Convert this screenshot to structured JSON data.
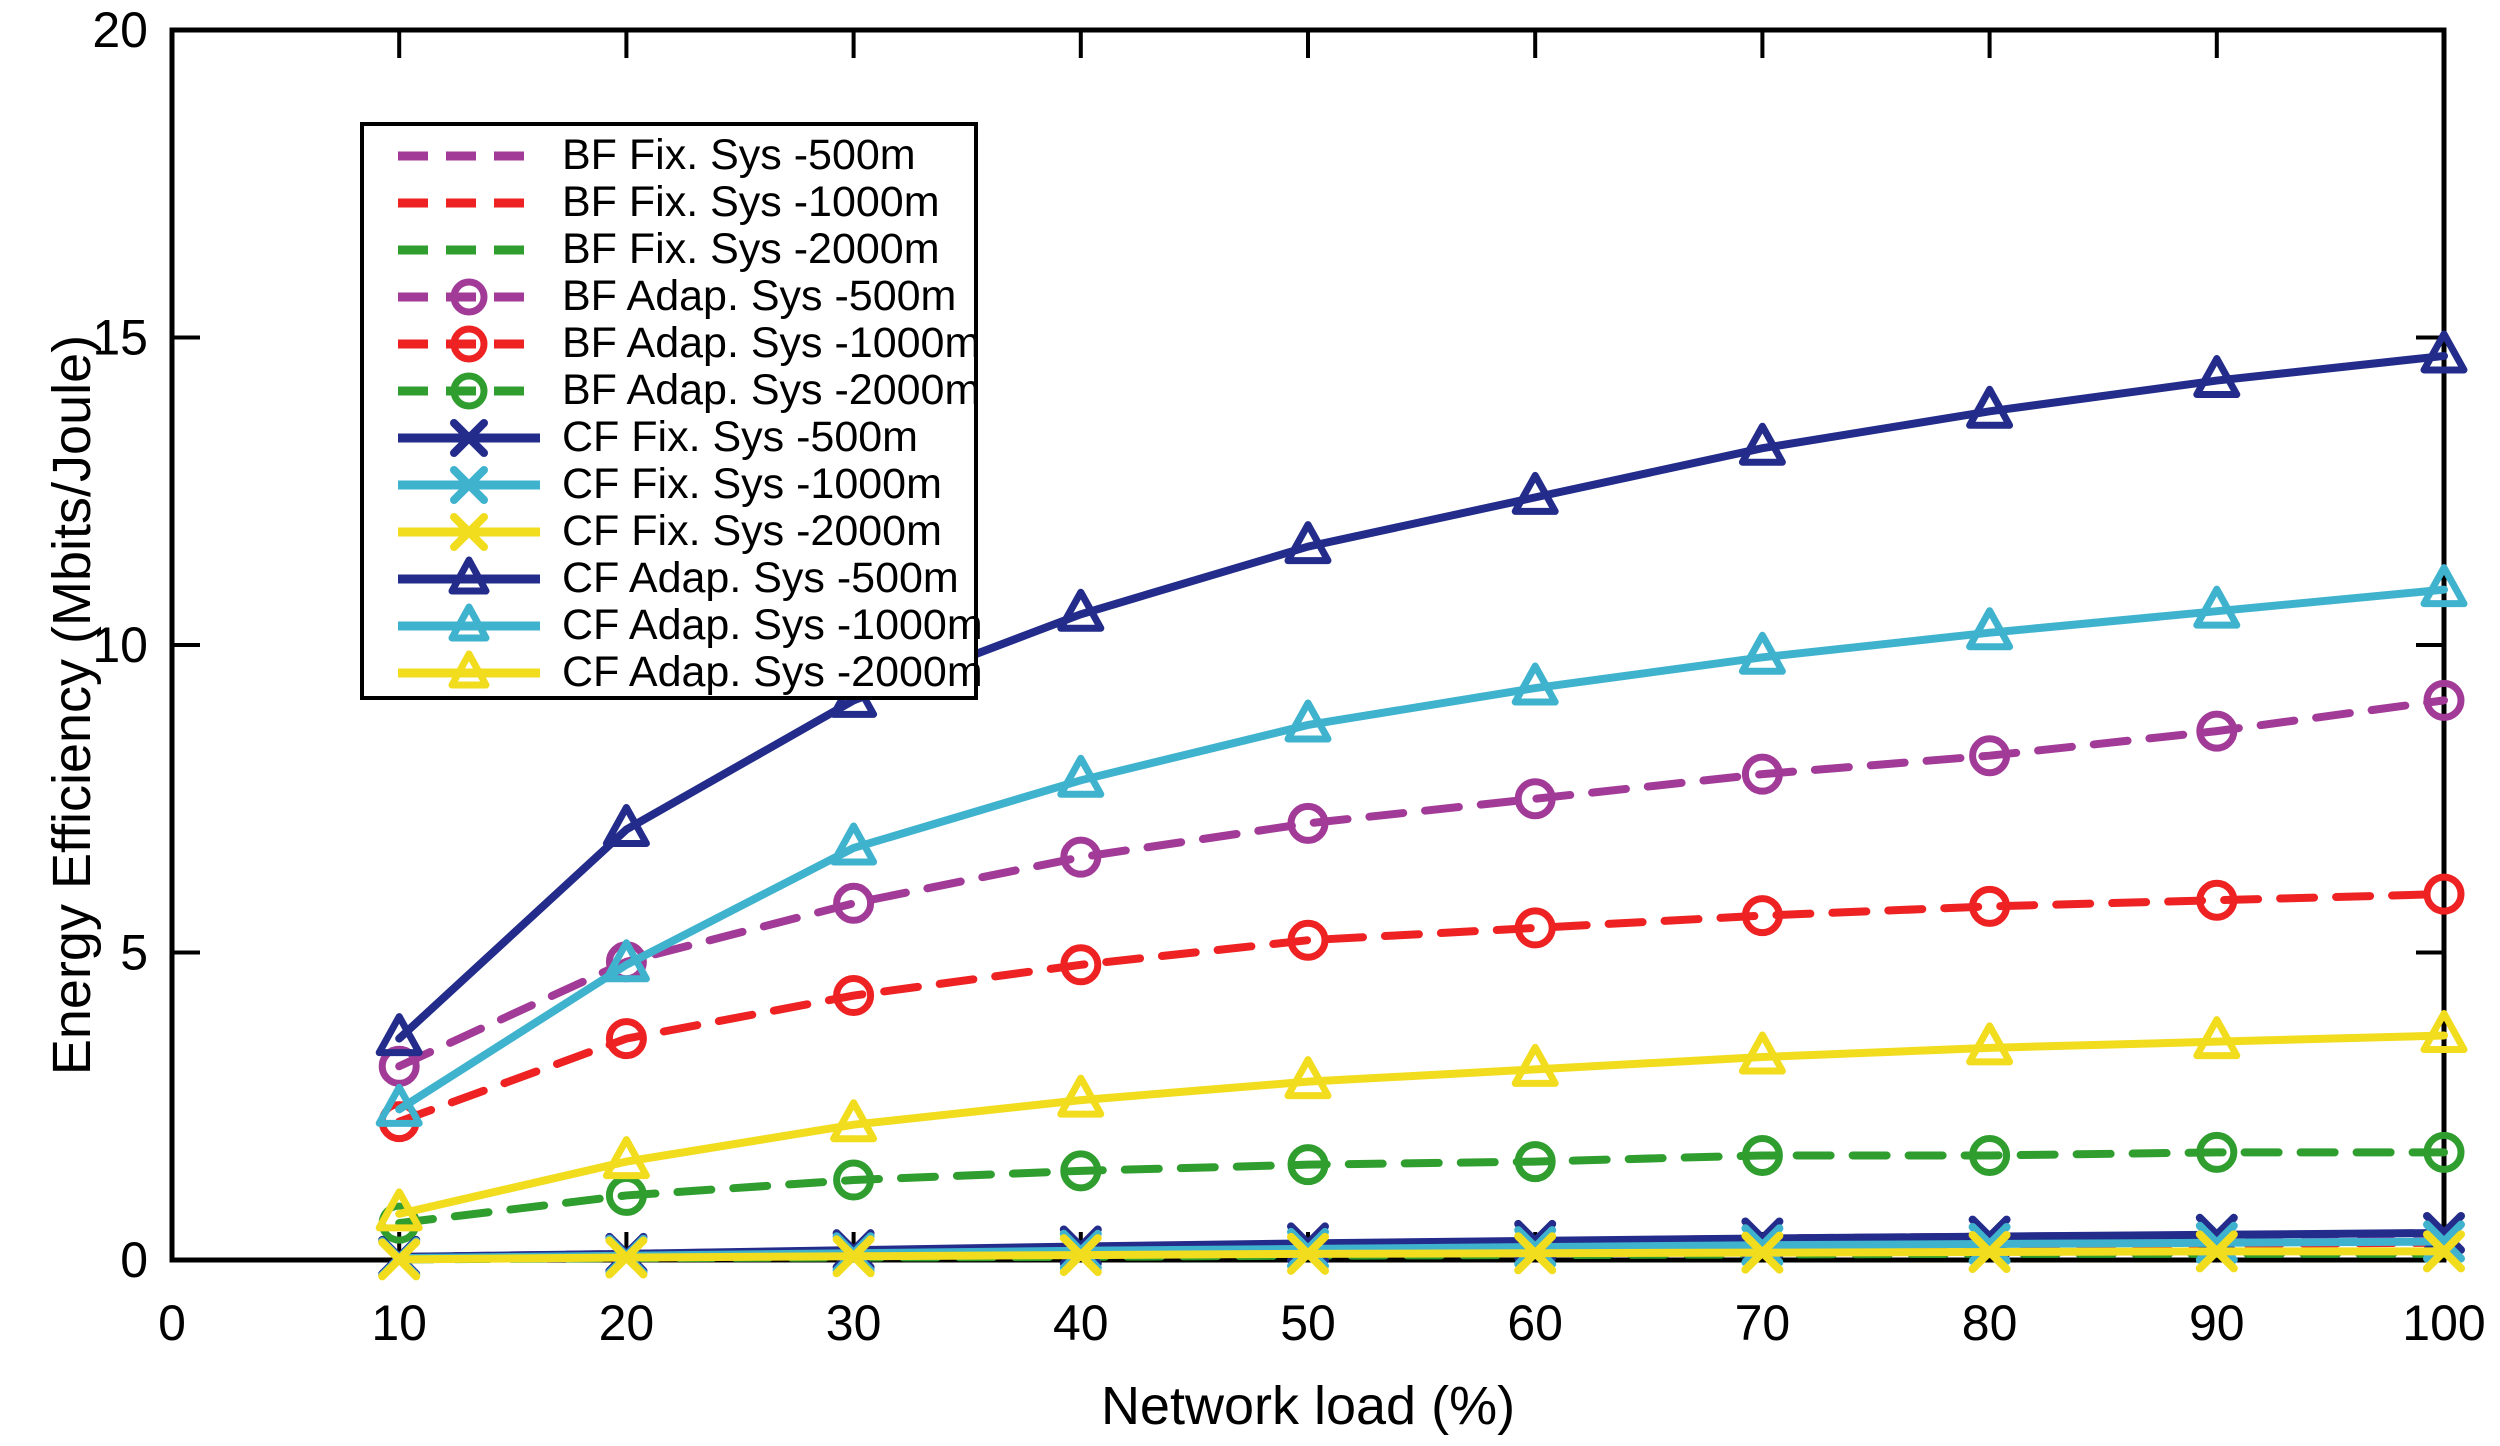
{
  "chart_data": {
    "type": "line",
    "title": "",
    "xlabel": "Network load (%)",
    "ylabel": "Energy Efficiency (Mbits/Joule)",
    "x": [
      10,
      20,
      30,
      40,
      50,
      60,
      70,
      80,
      90,
      100
    ],
    "xlim": [
      0,
      100
    ],
    "ylim": [
      0,
      20
    ],
    "xticks": [
      0,
      10,
      20,
      30,
      40,
      50,
      60,
      70,
      80,
      90,
      100
    ],
    "yticks": [
      0,
      5,
      10,
      15,
      20
    ],
    "grid": false,
    "legend_position": "upper-left-inside",
    "colors": {
      "purple": "#A23B97",
      "red": "#EE2222",
      "green": "#2F9E2F",
      "navy": "#232C8A",
      "cyan": "#3FB3CE",
      "yellow": "#F2DC1E",
      "axis": "#000000"
    },
    "series": [
      {
        "name": "BF Fix. Sys -500m",
        "color": "#A23B97",
        "line": "dashed",
        "marker": "none",
        "values": [
          0.05,
          0.1,
          0.15,
          0.2,
          0.25,
          0.3,
          0.35,
          0.38,
          0.4,
          0.43
        ]
      },
      {
        "name": "BF Fix. Sys -1000m",
        "color": "#EE2222",
        "line": "dashed",
        "marker": "none",
        "values": [
          0.03,
          0.07,
          0.1,
          0.13,
          0.16,
          0.19,
          0.22,
          0.24,
          0.26,
          0.28
        ]
      },
      {
        "name": "BF Fix. Sys -2000m",
        "color": "#2F9E2F",
        "line": "dashed",
        "marker": "none",
        "values": [
          0.01,
          0.03,
          0.04,
          0.05,
          0.07,
          0.08,
          0.09,
          0.1,
          0.1,
          0.1
        ]
      },
      {
        "name": "BF Adap. Sys -500m",
        "color": "#A23B97",
        "line": "dashed",
        "marker": "circle",
        "values": [
          3.15,
          4.85,
          5.8,
          6.55,
          7.1,
          7.5,
          7.9,
          8.2,
          8.6,
          9.1
        ]
      },
      {
        "name": "BF Adap. Sys -1000m",
        "color": "#EE2222",
        "line": "dashed",
        "marker": "circle",
        "values": [
          2.25,
          3.6,
          4.3,
          4.8,
          5.2,
          5.4,
          5.6,
          5.75,
          5.85,
          5.95
        ]
      },
      {
        "name": "BF Adap. Sys -2000m",
        "color": "#2F9E2F",
        "line": "dashed",
        "marker": "circle",
        "values": [
          0.6,
          1.05,
          1.3,
          1.45,
          1.55,
          1.6,
          1.7,
          1.7,
          1.75,
          1.75
        ]
      },
      {
        "name": "CF Fix. Sys -500m",
        "color": "#232C8A",
        "line": "solid",
        "marker": "x",
        "values": [
          0.05,
          0.1,
          0.16,
          0.22,
          0.27,
          0.31,
          0.35,
          0.38,
          0.41,
          0.44
        ]
      },
      {
        "name": "CF Fix. Sys -1000m",
        "color": "#3FB3CE",
        "line": "solid",
        "marker": "x",
        "values": [
          0.03,
          0.07,
          0.11,
          0.15,
          0.18,
          0.21,
          0.24,
          0.26,
          0.28,
          0.3
        ]
      },
      {
        "name": "CF Fix. Sys -2000m",
        "color": "#F2DC1E",
        "line": "solid",
        "marker": "x",
        "values": [
          0.01,
          0.04,
          0.06,
          0.08,
          0.1,
          0.11,
          0.12,
          0.13,
          0.14,
          0.14
        ]
      },
      {
        "name": "CF Adap. Sys -500m",
        "color": "#232C8A",
        "line": "solid",
        "marker": "triangle",
        "values": [
          3.6,
          7.0,
          9.1,
          10.5,
          11.6,
          12.4,
          13.2,
          13.8,
          14.3,
          14.7
        ]
      },
      {
        "name": "CF Adap. Sys -1000m",
        "color": "#3FB3CE",
        "line": "solid",
        "marker": "triangle",
        "values": [
          2.45,
          4.8,
          6.7,
          7.8,
          8.7,
          9.3,
          9.8,
          10.2,
          10.55,
          10.9
        ]
      },
      {
        "name": "CF Adap. Sys -2000m",
        "color": "#F2DC1E",
        "line": "solid",
        "marker": "triangle",
        "values": [
          0.75,
          1.6,
          2.2,
          2.6,
          2.9,
          3.1,
          3.3,
          3.45,
          3.55,
          3.65
        ]
      }
    ]
  }
}
